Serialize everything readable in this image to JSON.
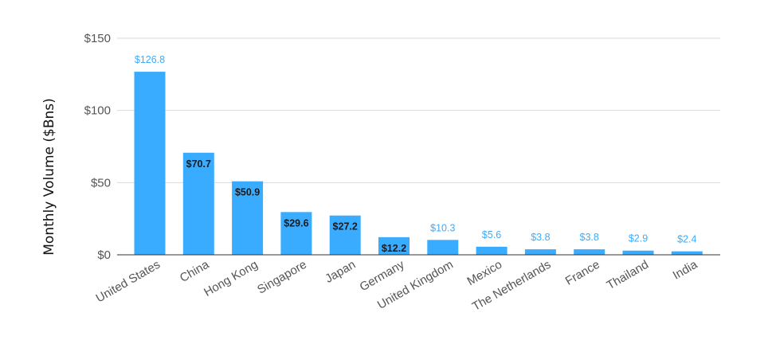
{
  "chart_data": {
    "type": "bar",
    "ylabel": "Monthly Volume ($Bns)",
    "xlabel": "",
    "ylim": [
      0,
      150
    ],
    "yticks": [
      0,
      50,
      100,
      150
    ],
    "ytick_labels": [
      "$0",
      "$50",
      "$100",
      "$150"
    ],
    "grid": true,
    "bar_color": "#3aacff",
    "label_color_outside": "#3aacff",
    "label_color_inside": "#1a1a1a",
    "categories": [
      "United States",
      "China",
      "Hong Kong",
      "Singapore",
      "Japan",
      "Germany",
      "United Kingdom",
      "Mexico",
      "The Netherlands",
      "France",
      "Thailand",
      "India"
    ],
    "values": [
      126.8,
      70.7,
      50.9,
      29.6,
      27.2,
      12.2,
      10.3,
      5.6,
      3.8,
      3.8,
      2.9,
      2.4
    ],
    "value_labels": [
      "$126.8",
      "$70.7",
      "$50.9",
      "$29.6",
      "$27.2",
      "$12.2",
      "$10.3",
      "$5.6",
      "$3.8",
      "$3.8",
      "$2.9",
      "$2.4"
    ],
    "value_label_position": [
      "above",
      "inside",
      "inside",
      "inside",
      "inside",
      "inside",
      "above",
      "above",
      "above",
      "above",
      "above",
      "above"
    ]
  }
}
